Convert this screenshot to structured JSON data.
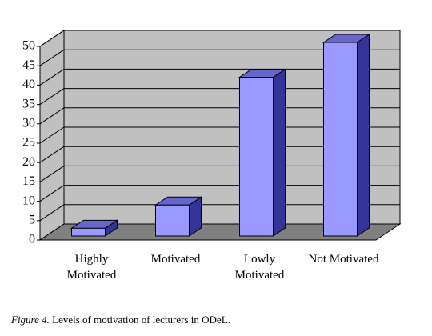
{
  "chart_data": {
    "type": "bar3d",
    "categories": [
      "Highly Motivated",
      "Motivated",
      "Lowly Motivated",
      "Not Motivated"
    ],
    "values": [
      2,
      8,
      41,
      50
    ],
    "color": "#9999ff",
    "ylim": [
      0,
      50
    ],
    "yticks": [
      0,
      5,
      10,
      15,
      20,
      25,
      30,
      35,
      40,
      45,
      50
    ],
    "grid": true,
    "caption_label": "Figure 4.",
    "caption_text": "Levels of motivation of lecturers in ODeL."
  }
}
